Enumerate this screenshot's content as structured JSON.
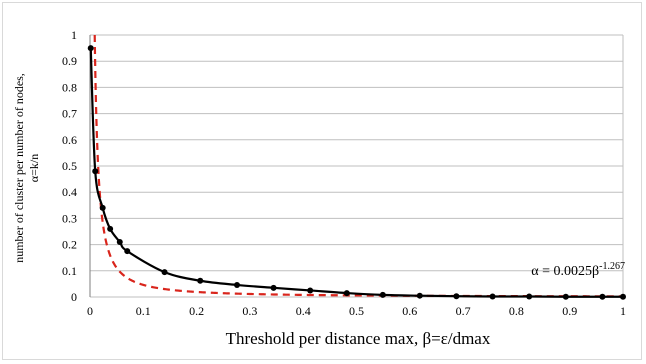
{
  "chart_data": {
    "type": "line",
    "title": "",
    "xlabel": "Threshold per distance max, β=ε/dmax",
    "ylabel_line1": "number of cluster per number of nodes,",
    "ylabel_line2": "α=k/n",
    "xlim": [
      0,
      1
    ],
    "ylim": [
      0,
      1
    ],
    "x_ticks": [
      "0",
      "0.1",
      "0.2",
      "0.3",
      "0.4",
      "0.5",
      "0.6",
      "0.7",
      "0.8",
      "0.9",
      "1"
    ],
    "y_ticks": [
      "0",
      "0.1",
      "0.2",
      "0.3",
      "0.4",
      "0.5",
      "0.6",
      "0.7",
      "0.8",
      "0.9",
      "1"
    ],
    "grid": "horizontal",
    "series": [
      {
        "style": "solid-with-markers",
        "color": "#000000",
        "x": [
          0.0014,
          0.0098,
          0.0238,
          0.0378,
          0.0559,
          0.0699,
          0.1399,
          0.2068,
          0.2758,
          0.3444,
          0.4131,
          0.4818,
          0.5494,
          0.6187,
          0.6874,
          0.7553,
          0.824,
          0.8927,
          0.9614,
          1.0
        ],
        "y": [
          0.95,
          0.48,
          0.34,
          0.26,
          0.21,
          0.175,
          0.095,
          0.062,
          0.046,
          0.035,
          0.025,
          0.015,
          0.008,
          0.005,
          0.003,
          0.002,
          0.002,
          0.001,
          0.001,
          0.001
        ]
      },
      {
        "style": "dashed-fit",
        "color": "#d9251c",
        "formula_coeff": 0.0025,
        "formula_exp": -1.267
      }
    ],
    "annotation": {
      "prefix": "α = 0.0025β",
      "superscript": "-1.267"
    }
  }
}
